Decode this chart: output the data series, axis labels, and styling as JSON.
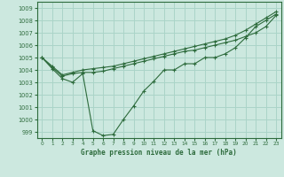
{
  "title": "Graphe pression niveau de la mer (hPa)",
  "bg_color": "#cce8df",
  "grid_color": "#aad4c8",
  "line_color": "#2d6b3c",
  "ylim": [
    998.5,
    1009.5
  ],
  "xlim": [
    -0.5,
    23.5
  ],
  "xticks": [
    0,
    1,
    2,
    3,
    4,
    5,
    6,
    7,
    8,
    9,
    10,
    11,
    12,
    13,
    14,
    15,
    16,
    17,
    18,
    19,
    20,
    21,
    22,
    23
  ],
  "yticks": [
    999,
    1000,
    1001,
    1002,
    1003,
    1004,
    1005,
    1006,
    1007,
    1008,
    1009
  ],
  "series1_x": [
    0,
    1,
    2,
    3,
    4,
    5,
    6,
    7,
    8,
    9,
    10,
    11,
    12,
    13,
    14,
    15,
    16,
    17,
    18,
    19,
    20,
    21,
    22,
    23
  ],
  "series1_y": [
    1005.0,
    1004.1,
    1003.3,
    1003.0,
    1003.7,
    999.1,
    998.7,
    998.8,
    1000.0,
    1001.1,
    1002.3,
    1003.1,
    1004.0,
    1004.0,
    1004.5,
    1004.5,
    1005.0,
    1005.0,
    1005.3,
    1005.8,
    1006.6,
    1007.5,
    1008.0,
    1008.5
  ],
  "series2_x": [
    0,
    1,
    2,
    3,
    4,
    5,
    6,
    7,
    8,
    9,
    10,
    11,
    12,
    13,
    14,
    15,
    16,
    17,
    18,
    19,
    20,
    21,
    22,
    23
  ],
  "series2_y": [
    1005.0,
    1004.2,
    1003.5,
    1003.7,
    1003.8,
    1003.8,
    1003.9,
    1004.1,
    1004.3,
    1004.5,
    1004.7,
    1004.9,
    1005.1,
    1005.3,
    1005.5,
    1005.6,
    1005.8,
    1006.0,
    1006.2,
    1006.4,
    1006.7,
    1007.0,
    1007.5,
    1008.4
  ],
  "series3_x": [
    0,
    1,
    2,
    3,
    4,
    5,
    6,
    7,
    8,
    9,
    10,
    11,
    12,
    13,
    14,
    15,
    16,
    17,
    18,
    19,
    20,
    21,
    22,
    23
  ],
  "series3_y": [
    1005.0,
    1004.3,
    1003.6,
    1003.8,
    1004.0,
    1004.1,
    1004.2,
    1004.3,
    1004.5,
    1004.7,
    1004.9,
    1005.1,
    1005.3,
    1005.5,
    1005.7,
    1005.9,
    1006.1,
    1006.3,
    1006.5,
    1006.8,
    1007.2,
    1007.7,
    1008.2,
    1008.7
  ]
}
